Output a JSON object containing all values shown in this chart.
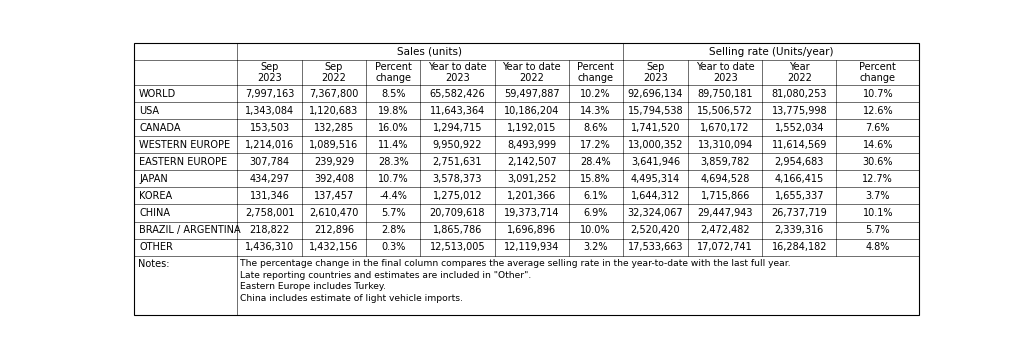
{
  "title_sales": "Sales (units)",
  "title_selling": "Selling rate (Units/year)",
  "col_headers": [
    "Sep\n2023",
    "Sep\n2022",
    "Percent\nchange",
    "Year to date\n2023",
    "Year to date\n2022",
    "Percent\nchange",
    "Sep\n2023",
    "Year to date\n2023",
    "Year\n2022",
    "Percent\nchange"
  ],
  "rows": [
    [
      "WORLD",
      "7,997,163",
      "7,367,800",
      "8.5%",
      "65,582,426",
      "59,497,887",
      "10.2%",
      "92,696,134",
      "89,750,181",
      "81,080,253",
      "10.7%"
    ],
    [
      "USA",
      "1,343,084",
      "1,120,683",
      "19.8%",
      "11,643,364",
      "10,186,204",
      "14.3%",
      "15,794,538",
      "15,506,572",
      "13,775,998",
      "12.6%"
    ],
    [
      "CANADA",
      "153,503",
      "132,285",
      "16.0%",
      "1,294,715",
      "1,192,015",
      "8.6%",
      "1,741,520",
      "1,670,172",
      "1,552,034",
      "7.6%"
    ],
    [
      "WESTERN EUROPE",
      "1,214,016",
      "1,089,516",
      "11.4%",
      "9,950,922",
      "8,493,999",
      "17.2%",
      "13,000,352",
      "13,310,094",
      "11,614,569",
      "14.6%"
    ],
    [
      "EASTERN EUROPE",
      "307,784",
      "239,929",
      "28.3%",
      "2,751,631",
      "2,142,507",
      "28.4%",
      "3,641,946",
      "3,859,782",
      "2,954,683",
      "30.6%"
    ],
    [
      "JAPAN",
      "434,297",
      "392,408",
      "10.7%",
      "3,578,373",
      "3,091,252",
      "15.8%",
      "4,495,314",
      "4,694,528",
      "4,166,415",
      "12.7%"
    ],
    [
      "KOREA",
      "131,346",
      "137,457",
      "-4.4%",
      "1,275,012",
      "1,201,366",
      "6.1%",
      "1,644,312",
      "1,715,866",
      "1,655,337",
      "3.7%"
    ],
    [
      "CHINA",
      "2,758,001",
      "2,610,470",
      "5.7%",
      "20,709,618",
      "19,373,714",
      "6.9%",
      "32,324,067",
      "29,447,943",
      "26,737,719",
      "10.1%"
    ],
    [
      "BRAZIL / ARGENTINA",
      "218,822",
      "212,896",
      "2.8%",
      "1,865,786",
      "1,696,896",
      "10.0%",
      "2,520,420",
      "2,472,482",
      "2,339,316",
      "5.7%"
    ],
    [
      "OTHER",
      "1,436,310",
      "1,432,156",
      "0.3%",
      "12,513,005",
      "12,119,934",
      "3.2%",
      "17,533,663",
      "17,072,741",
      "16,284,182",
      "4.8%"
    ]
  ],
  "notes": [
    "The percentage change in the final column compares the average selling rate in the year-to-date with the last full year.",
    "Late reporting countries and estimates are included in \"Other\".",
    "Eastern Europe includes Turkey.",
    "China includes estimate of light vehicle imports."
  ],
  "bg_color": "#ffffff",
  "text_color": "#000000",
  "font_size": 7.0,
  "header_font_size": 7.5,
  "col_props": [
    0.118,
    0.074,
    0.074,
    0.062,
    0.085,
    0.085,
    0.062,
    0.075,
    0.085,
    0.085,
    0.095
  ],
  "lw_outer": 0.8,
  "lw_inner": 0.4
}
